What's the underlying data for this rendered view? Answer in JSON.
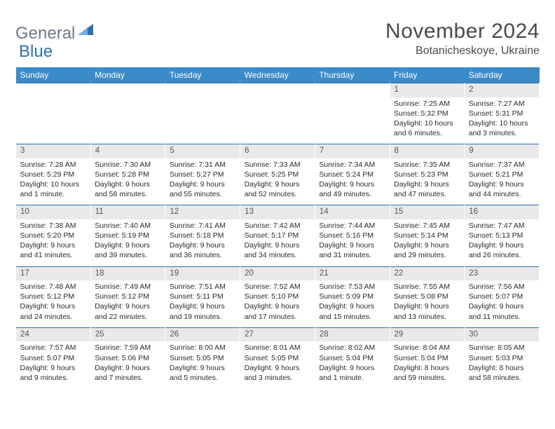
{
  "logo": {
    "text1": "General",
    "text2": "Blue"
  },
  "title": {
    "month": "November 2024",
    "location": "Botanicheskoye, Ukraine"
  },
  "colors": {
    "header_bg": "#3b8bc9",
    "header_text": "#ffffff",
    "daynum_bg": "#e9e9e9",
    "week_border": "#2f6fab",
    "logo_gray": "#6e7a86",
    "logo_blue": "#2f6fab",
    "body_text": "#2b2b2b",
    "page_bg": "#ffffff"
  },
  "typography": {
    "title_fontsize_pt": 22,
    "location_fontsize_pt": 12,
    "header_fontsize_pt": 9,
    "cell_fontsize_pt": 8
  },
  "calendar": {
    "columns": [
      "Sunday",
      "Monday",
      "Tuesday",
      "Wednesday",
      "Thursday",
      "Friday",
      "Saturday"
    ],
    "weeks": [
      [
        null,
        null,
        null,
        null,
        null,
        {
          "n": "1",
          "sr": "Sunrise: 7:25 AM",
          "ss": "Sunset: 5:32 PM",
          "dl": "Daylight: 10 hours and 6 minutes."
        },
        {
          "n": "2",
          "sr": "Sunrise: 7:27 AM",
          "ss": "Sunset: 5:31 PM",
          "dl": "Daylight: 10 hours and 3 minutes."
        }
      ],
      [
        {
          "n": "3",
          "sr": "Sunrise: 7:28 AM",
          "ss": "Sunset: 5:29 PM",
          "dl": "Daylight: 10 hours and 1 minute."
        },
        {
          "n": "4",
          "sr": "Sunrise: 7:30 AM",
          "ss": "Sunset: 5:28 PM",
          "dl": "Daylight: 9 hours and 58 minutes."
        },
        {
          "n": "5",
          "sr": "Sunrise: 7:31 AM",
          "ss": "Sunset: 5:27 PM",
          "dl": "Daylight: 9 hours and 55 minutes."
        },
        {
          "n": "6",
          "sr": "Sunrise: 7:33 AM",
          "ss": "Sunset: 5:25 PM",
          "dl": "Daylight: 9 hours and 52 minutes."
        },
        {
          "n": "7",
          "sr": "Sunrise: 7:34 AM",
          "ss": "Sunset: 5:24 PM",
          "dl": "Daylight: 9 hours and 49 minutes."
        },
        {
          "n": "8",
          "sr": "Sunrise: 7:35 AM",
          "ss": "Sunset: 5:23 PM",
          "dl": "Daylight: 9 hours and 47 minutes."
        },
        {
          "n": "9",
          "sr": "Sunrise: 7:37 AM",
          "ss": "Sunset: 5:21 PM",
          "dl": "Daylight: 9 hours and 44 minutes."
        }
      ],
      [
        {
          "n": "10",
          "sr": "Sunrise: 7:38 AM",
          "ss": "Sunset: 5:20 PM",
          "dl": "Daylight: 9 hours and 41 minutes."
        },
        {
          "n": "11",
          "sr": "Sunrise: 7:40 AM",
          "ss": "Sunset: 5:19 PM",
          "dl": "Daylight: 9 hours and 39 minutes."
        },
        {
          "n": "12",
          "sr": "Sunrise: 7:41 AM",
          "ss": "Sunset: 5:18 PM",
          "dl": "Daylight: 9 hours and 36 minutes."
        },
        {
          "n": "13",
          "sr": "Sunrise: 7:42 AM",
          "ss": "Sunset: 5:17 PM",
          "dl": "Daylight: 9 hours and 34 minutes."
        },
        {
          "n": "14",
          "sr": "Sunrise: 7:44 AM",
          "ss": "Sunset: 5:16 PM",
          "dl": "Daylight: 9 hours and 31 minutes."
        },
        {
          "n": "15",
          "sr": "Sunrise: 7:45 AM",
          "ss": "Sunset: 5:14 PM",
          "dl": "Daylight: 9 hours and 29 minutes."
        },
        {
          "n": "16",
          "sr": "Sunrise: 7:47 AM",
          "ss": "Sunset: 5:13 PM",
          "dl": "Daylight: 9 hours and 26 minutes."
        }
      ],
      [
        {
          "n": "17",
          "sr": "Sunrise: 7:48 AM",
          "ss": "Sunset: 5:12 PM",
          "dl": "Daylight: 9 hours and 24 minutes."
        },
        {
          "n": "18",
          "sr": "Sunrise: 7:49 AM",
          "ss": "Sunset: 5:12 PM",
          "dl": "Daylight: 9 hours and 22 minutes."
        },
        {
          "n": "19",
          "sr": "Sunrise: 7:51 AM",
          "ss": "Sunset: 5:11 PM",
          "dl": "Daylight: 9 hours and 19 minutes."
        },
        {
          "n": "20",
          "sr": "Sunrise: 7:52 AM",
          "ss": "Sunset: 5:10 PM",
          "dl": "Daylight: 9 hours and 17 minutes."
        },
        {
          "n": "21",
          "sr": "Sunrise: 7:53 AM",
          "ss": "Sunset: 5:09 PM",
          "dl": "Daylight: 9 hours and 15 minutes."
        },
        {
          "n": "22",
          "sr": "Sunrise: 7:55 AM",
          "ss": "Sunset: 5:08 PM",
          "dl": "Daylight: 9 hours and 13 minutes."
        },
        {
          "n": "23",
          "sr": "Sunrise: 7:56 AM",
          "ss": "Sunset: 5:07 PM",
          "dl": "Daylight: 9 hours and 11 minutes."
        }
      ],
      [
        {
          "n": "24",
          "sr": "Sunrise: 7:57 AM",
          "ss": "Sunset: 5:07 PM",
          "dl": "Daylight: 9 hours and 9 minutes."
        },
        {
          "n": "25",
          "sr": "Sunrise: 7:59 AM",
          "ss": "Sunset: 5:06 PM",
          "dl": "Daylight: 9 hours and 7 minutes."
        },
        {
          "n": "26",
          "sr": "Sunrise: 8:00 AM",
          "ss": "Sunset: 5:05 PM",
          "dl": "Daylight: 9 hours and 5 minutes."
        },
        {
          "n": "27",
          "sr": "Sunrise: 8:01 AM",
          "ss": "Sunset: 5:05 PM",
          "dl": "Daylight: 9 hours and 3 minutes."
        },
        {
          "n": "28",
          "sr": "Sunrise: 8:02 AM",
          "ss": "Sunset: 5:04 PM",
          "dl": "Daylight: 9 hours and 1 minute."
        },
        {
          "n": "29",
          "sr": "Sunrise: 8:04 AM",
          "ss": "Sunset: 5:04 PM",
          "dl": "Daylight: 8 hours and 59 minutes."
        },
        {
          "n": "30",
          "sr": "Sunrise: 8:05 AM",
          "ss": "Sunset: 5:03 PM",
          "dl": "Daylight: 8 hours and 58 minutes."
        }
      ]
    ]
  }
}
